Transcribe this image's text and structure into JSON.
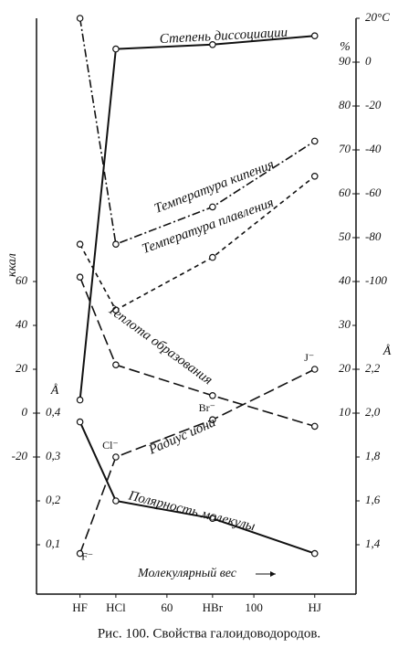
{
  "chart_data": {
    "type": "line",
    "caption": "Рис. 100. Свойства галоидоводородов.",
    "xlabel": "Молекулярный вес",
    "x": [
      20,
      36.5,
      81,
      128
    ],
    "xlim": [
      0,
      147
    ],
    "xticks": [
      {
        "value": 20,
        "label": "HF"
      },
      {
        "value": 36.5,
        "label": "HCl"
      },
      60,
      {
        "value": 81,
        "label": "HBr"
      },
      100,
      {
        "value": 128,
        "label": "HJ"
      }
    ],
    "y_axes": [
      {
        "label": "ккал",
        "lim": [
          -80,
          180
        ],
        "ticks": [
          -20,
          0,
          20,
          40,
          60
        ]
      },
      {
        "label": "Å",
        "lim": [
          0,
          1.3
        ],
        "ticks": [
          {
            "value": 0.1,
            "label": "0,1"
          },
          {
            "value": 0.2,
            "label": "0,2"
          },
          {
            "value": 0.3,
            "label": "0,3"
          },
          {
            "value": 0.4,
            "label": "0,4"
          }
        ]
      },
      {
        "label": "%",
        "lim": [
          -30,
          100
        ],
        "ticks": [
          10,
          20,
          30,
          40,
          50,
          60,
          70,
          80,
          90
        ]
      },
      {
        "lim": [
          -240,
          20
        ],
        "ticks": [
          -100,
          -80,
          -60,
          -40,
          -20,
          0,
          {
            "value": 20,
            "label": "20°C"
          }
        ]
      },
      {
        "label": "Å",
        "lim": [
          1.2,
          3.8
        ],
        "ticks": [
          {
            "value": 1.4,
            "label": "1,4"
          },
          {
            "value": 1.6,
            "label": "1,6"
          },
          {
            "value": 1.8,
            "label": "1,8"
          },
          {
            "value": 2.0,
            "label": "2,0"
          },
          {
            "value": 2.2,
            "label": "2,2"
          }
        ]
      }
    ],
    "series": [
      {
        "name": "Степень диссоциации",
        "axis": 2,
        "dash": "solid",
        "color": "#111",
        "values": [
          13,
          93,
          94,
          96
        ]
      },
      {
        "name": "Температура кипения",
        "axis": 3,
        "dash": "dashdot",
        "color": "#111",
        "values": [
          20,
          -83,
          -66,
          -36
        ]
      },
      {
        "name": "Температура плавления",
        "axis": 3,
        "dash": "dashed",
        "color": "#111",
        "values": [
          -83,
          -113,
          -89,
          -52
        ]
      },
      {
        "name": "Теплота образования",
        "axis": 0,
        "dash": "longdash",
        "color": "#111",
        "values": [
          62,
          22,
          8,
          -6
        ]
      },
      {
        "name": "Радиус иона",
        "axis": 4,
        "dash": "longdash",
        "color": "#111",
        "values": [
          1.36,
          1.8,
          1.97,
          2.2
        ],
        "point_labels": [
          "F⁻",
          "Cl⁻",
          "Br⁻",
          "J⁻"
        ]
      },
      {
        "name": "Полярность молекулы",
        "axis": 1,
        "dash": "solid",
        "color": "#111",
        "values": [
          0.38,
          0.2,
          0.16,
          0.08
        ]
      }
    ]
  }
}
